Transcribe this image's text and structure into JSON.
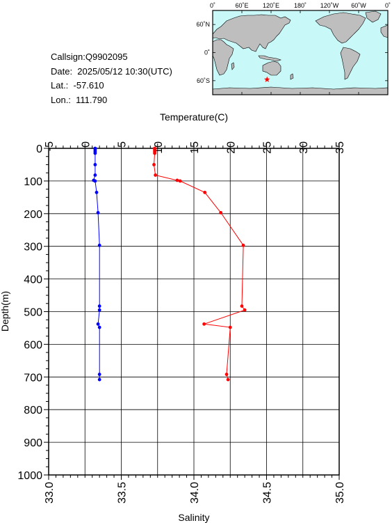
{
  "info": {
    "callsign": "Callsign:Q9902095",
    "date": "Date:  2025/05/12 10:30(UTC)",
    "lat": "Lat.:  -57.610",
    "lon": "Lon.:  111.790"
  },
  "map": {
    "lon_labels": [
      "0˚",
      "60˚E",
      "120˚E",
      "180˚",
      "120˚W",
      "60˚W",
      "0˚"
    ],
    "lat_labels": [
      "60˚N",
      "0˚",
      "60˚S"
    ],
    "ocean_color": "#c8f8f8",
    "land_color": "#bebebe",
    "marker_icon": "star-icon",
    "marker_color": "#ff0000",
    "marker": {
      "lon": 111.79,
      "lat": -57.61
    }
  },
  "chart_data": {
    "type": "line",
    "top_axis_label": "Temperature(C)",
    "bottom_axis_label": "Salinity",
    "y_axis_label": "Depth(m)",
    "temperature_ticks": [
      "-5",
      "0",
      "5",
      "10",
      "15",
      "20",
      "25",
      "30",
      "35"
    ],
    "salinity_ticks": [
      "33.0",
      "33.5",
      "34.0",
      "34.5",
      "35.0"
    ],
    "depth_ticks": [
      "0",
      "100",
      "200",
      "300",
      "400",
      "500",
      "600",
      "700",
      "800",
      "900",
      "1000"
    ],
    "temperature_range": [
      -5,
      35
    ],
    "salinity_range": [
      33.0,
      35.0
    ],
    "depth_range": [
      0,
      1000
    ],
    "grid": true,
    "series": [
      {
        "name": "Temperature",
        "color": "#ff0000",
        "points": [
          {
            "value": 9.6,
            "depth": 0
          },
          {
            "value": 9.6,
            "depth": 5
          },
          {
            "value": 9.6,
            "depth": 10
          },
          {
            "value": 9.6,
            "depth": 15
          },
          {
            "value": 9.5,
            "depth": 50
          },
          {
            "value": 9.7,
            "depth": 82
          },
          {
            "value": 12.7,
            "depth": 98
          },
          {
            "value": 13.1,
            "depth": 100
          },
          {
            "value": 16.5,
            "depth": 135
          },
          {
            "value": 18.7,
            "depth": 197
          },
          {
            "value": 21.8,
            "depth": 297
          },
          {
            "value": 21.6,
            "depth": 483
          },
          {
            "value": 22.0,
            "depth": 495
          },
          {
            "value": 16.4,
            "depth": 538
          },
          {
            "value": 20.0,
            "depth": 548
          },
          {
            "value": 19.5,
            "depth": 692
          },
          {
            "value": 19.7,
            "depth": 708
          }
        ]
      },
      {
        "name": "Salinity",
        "color": "#0000ff",
        "points": [
          {
            "value": 33.32,
            "depth": 0
          },
          {
            "value": 33.32,
            "depth": 5
          },
          {
            "value": 33.32,
            "depth": 10
          },
          {
            "value": 33.32,
            "depth": 15
          },
          {
            "value": 33.32,
            "depth": 50
          },
          {
            "value": 33.32,
            "depth": 82
          },
          {
            "value": 33.31,
            "depth": 98
          },
          {
            "value": 33.32,
            "depth": 100
          },
          {
            "value": 33.33,
            "depth": 135
          },
          {
            "value": 33.34,
            "depth": 197
          },
          {
            "value": 33.35,
            "depth": 297
          },
          {
            "value": 33.35,
            "depth": 483
          },
          {
            "value": 33.35,
            "depth": 495
          },
          {
            "value": 33.34,
            "depth": 538
          },
          {
            "value": 33.35,
            "depth": 548
          },
          {
            "value": 33.35,
            "depth": 692
          },
          {
            "value": 33.35,
            "depth": 708
          }
        ]
      }
    ]
  }
}
